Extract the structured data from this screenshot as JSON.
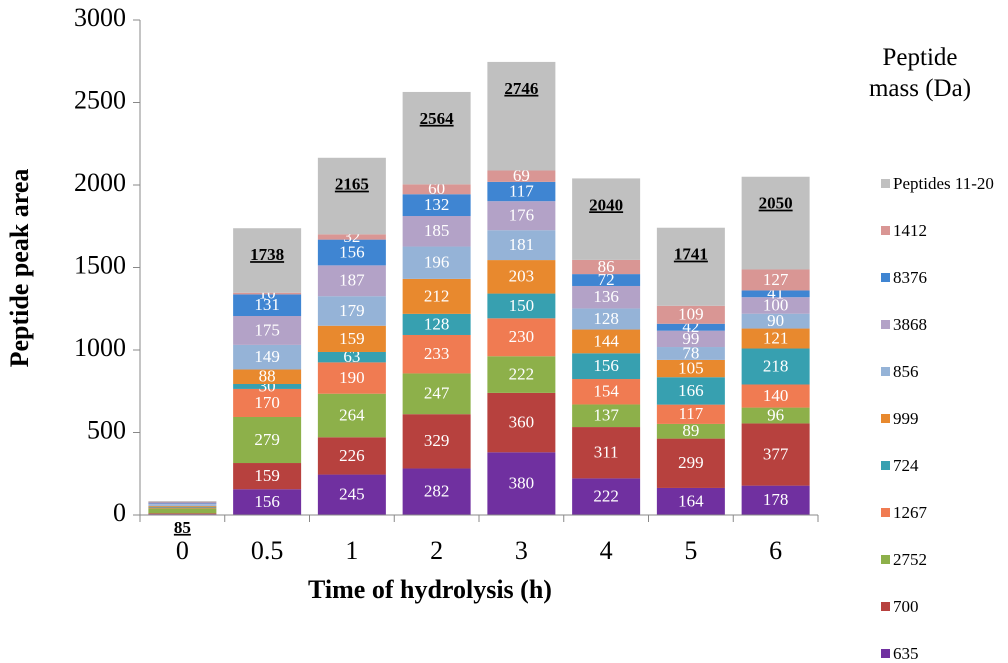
{
  "chart_data": {
    "type": "stacked_bar",
    "xlabel": "Time of hydrolysis (h)",
    "ylabel": "Peptide peak area",
    "legend_title": "Peptide mass (Da)",
    "categories": [
      "0",
      "0.5",
      "1",
      "2",
      "3",
      "4",
      "5",
      "6"
    ],
    "ylim": [
      0,
      3000
    ],
    "yticks": [
      0,
      500,
      1000,
      1500,
      2000,
      2500,
      3000
    ],
    "totals": [
      85,
      1738,
      2165,
      2564,
      2746,
      2040,
      1741,
      2050
    ],
    "legend_position": "right",
    "series": [
      {
        "name": "635",
        "color": "#7030a0",
        "values": [
          5,
          156,
          245,
          282,
          380,
          222,
          164,
          178
        ],
        "value_labels": [
          null,
          156,
          245,
          282,
          380,
          222,
          164,
          178
        ]
      },
      {
        "name": "700",
        "color": "#b7413e",
        "values": [
          5,
          159,
          226,
          329,
          360,
          311,
          299,
          377
        ],
        "value_labels": [
          null,
          159,
          226,
          329,
          360,
          311,
          299,
          377
        ]
      },
      {
        "name": "2752",
        "color": "#8db04a",
        "values": [
          30,
          279,
          264,
          247,
          222,
          137,
          89,
          96
        ],
        "value_labels": [
          null,
          279,
          264,
          247,
          222,
          137,
          89,
          96
        ]
      },
      {
        "name": "1267",
        "color": "#f07b52",
        "values": [
          5,
          170,
          190,
          233,
          230,
          154,
          117,
          140
        ],
        "value_labels": [
          null,
          170,
          190,
          233,
          230,
          154,
          117,
          140
        ]
      },
      {
        "name": "724",
        "color": "#37a0b0",
        "values": [
          5,
          30,
          63,
          128,
          150,
          156,
          166,
          218
        ],
        "value_labels": [
          null,
          30,
          63,
          128,
          150,
          156,
          166,
          218
        ]
      },
      {
        "name": "999",
        "color": "#e8892e",
        "values": [
          5,
          88,
          159,
          212,
          203,
          144,
          105,
          121
        ],
        "value_labels": [
          null,
          88,
          159,
          212,
          203,
          144,
          105,
          121
        ]
      },
      {
        "name": "856",
        "color": "#95b3d7",
        "values": [
          10,
          149,
          179,
          196,
          181,
          128,
          78,
          90
        ],
        "value_labels": [
          null,
          149,
          179,
          196,
          181,
          128,
          78,
          90
        ]
      },
      {
        "name": "3868",
        "color": "#b3a2c7",
        "values": [
          5,
          175,
          187,
          185,
          176,
          136,
          99,
          100
        ],
        "value_labels": [
          null,
          175,
          187,
          185,
          176,
          136,
          99,
          100
        ]
      },
      {
        "name": "8376",
        "color": "#3f85d2",
        "values": [
          5,
          131,
          156,
          132,
          117,
          72,
          42,
          41
        ],
        "value_labels": [
          null,
          131,
          156,
          132,
          117,
          72,
          42,
          41
        ]
      },
      {
        "name": "1412",
        "color": "#d99694",
        "values": [
          5,
          10,
          32,
          60,
          69,
          86,
          109,
          127
        ],
        "value_labels": [
          null,
          10,
          32,
          60,
          69,
          86,
          109,
          127
        ]
      },
      {
        "name": "Peptides 11-20",
        "color": "#c0c0c0",
        "values": [
          5,
          391,
          464,
          560,
          658,
          494,
          473,
          562
        ]
      }
    ]
  }
}
